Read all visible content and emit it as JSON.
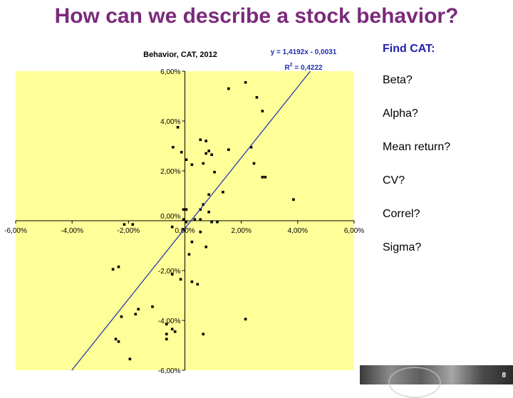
{
  "slide": {
    "title": "How can we describe a stock behavior?",
    "title_color": "#7b2a7b",
    "page_number": "8"
  },
  "side_panel": {
    "heading": "Find CAT:",
    "heading_color": "#1f1fb0",
    "items": [
      "Beta?",
      "Alpha?",
      "Mean return?",
      "CV?",
      "Correl?",
      "Sigma?"
    ]
  },
  "chart_data": {
    "type": "scatter",
    "title": "Behavior, CAT, 2012",
    "xlabel": "",
    "ylabel": "",
    "xlim": [
      -0.06,
      0.06
    ],
    "ylim": [
      -0.06,
      0.06
    ],
    "x_ticks": [
      -0.06,
      -0.04,
      -0.02,
      0,
      0.02,
      0.04,
      0.06
    ],
    "y_ticks": [
      -0.06,
      -0.04,
      -0.02,
      0,
      0.02,
      0.04,
      0.06
    ],
    "x_tick_labels": [
      "-6,00%",
      "-4,00%",
      "-2,00%",
      "0,00%",
      "2,00%",
      "4,00%",
      "6,00%"
    ],
    "y_tick_labels": [
      "-6,00%",
      "-4,00%",
      "-2,00%",
      "0,00%",
      "2,00%",
      "4,00%",
      "6,00%"
    ],
    "grid": false,
    "plot_background": "#ffff99",
    "point_color": "#000000",
    "trendline": {
      "slope": 1.4192,
      "intercept": -0.0031,
      "color": "#1f2fb0",
      "equation": "y = 1,4192x - 0,0031",
      "r2_prefix": "R",
      "r2_sup": "2",
      "r2_value": " = 0,4222"
    },
    "points": [
      [
        0.0155,
        0.053
      ],
      [
        0.0215,
        0.0555
      ],
      [
        0.0255,
        0.0495
      ],
      [
        0.0275,
        0.044
      ],
      [
        -0.0025,
        0.0375
      ],
      [
        -0.0042,
        0.0295
      ],
      [
        -0.0012,
        0.0275
      ],
      [
        0.0055,
        0.0325
      ],
      [
        0.0075,
        0.032
      ],
      [
        0.0075,
        0.027
      ],
      [
        0.0095,
        0.0265
      ],
      [
        0.0085,
        0.028
      ],
      [
        0.0155,
        0.0285
      ],
      [
        0.0235,
        0.0295
      ],
      [
        0.0025,
        0.0225
      ],
      [
        0.0105,
        0.0195
      ],
      [
        0.0005,
        0.0245
      ],
      [
        0.0065,
        0.023
      ],
      [
        0.0245,
        0.023
      ],
      [
        0.0275,
        0.0175
      ],
      [
        0.0285,
        0.0175
      ],
      [
        0.0385,
        0.0085
      ],
      [
        0.0135,
        0.0115
      ],
      [
        0.0085,
        0.0105
      ],
      [
        0.0065,
        0.0065
      ],
      [
        0.0055,
        0.0045
      ],
      [
        0.0085,
        0.0035
      ],
      [
        0.0005,
        0.0045
      ],
      [
        -0.0005,
        0.0045
      ],
      [
        0.0035,
        0.0005
      ],
      [
        0.0055,
        0.0005
      ],
      [
        0.0095,
        -0.0005
      ],
      [
        0.0115,
        -0.0005
      ],
      [
        -0.0005,
        0.0005
      ],
      [
        0.0005,
        -0.0005
      ],
      [
        -0.0215,
        -0.0015
      ],
      [
        -0.0185,
        -0.0015
      ],
      [
        -0.0045,
        -0.0025
      ],
      [
        -0.0005,
        -0.0035
      ],
      [
        0.0055,
        -0.0045
      ],
      [
        0.0025,
        -0.0085
      ],
      [
        0.0075,
        -0.0105
      ],
      [
        0.0015,
        -0.0135
      ],
      [
        -0.0235,
        -0.0185
      ],
      [
        -0.0255,
        -0.0195
      ],
      [
        -0.0045,
        -0.0215
      ],
      [
        -0.0015,
        -0.0235
      ],
      [
        0.0025,
        -0.0245
      ],
      [
        0.0045,
        -0.0255
      ],
      [
        -0.0115,
        -0.0345
      ],
      [
        -0.0165,
        -0.0355
      ],
      [
        -0.0175,
        -0.0375
      ],
      [
        -0.0225,
        -0.0385
      ],
      [
        -0.0065,
        -0.0415
      ],
      [
        -0.0045,
        -0.0435
      ],
      [
        -0.0035,
        -0.0445
      ],
      [
        -0.0065,
        -0.0455
      ],
      [
        0.0065,
        -0.0455
      ],
      [
        -0.0245,
        -0.0475
      ],
      [
        -0.0235,
        -0.0485
      ],
      [
        0.0215,
        -0.0395
      ],
      [
        -0.0195,
        -0.0555
      ],
      [
        -0.0065,
        -0.0475
      ]
    ]
  }
}
